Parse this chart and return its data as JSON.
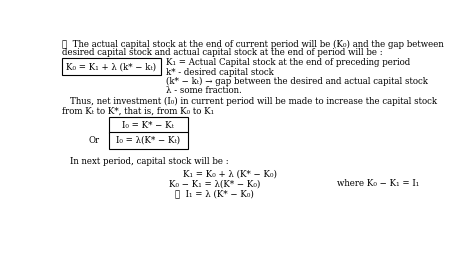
{
  "background_color": "#ffffff",
  "text_color": "#000000",
  "fig_width": 4.74,
  "fig_height": 2.69,
  "dpi": 100,
  "line1": "∴  The actual capital stock at the end of current period will be (K₀) and the gap between",
  "line2": "desired capital stock and actual capital stock at the end of period will be :",
  "box1_text": "K₀ = K₁ + λ (k* − kₜ)",
  "r1": "K₁ = Actual Capital stock at the end of preceding period",
  "r2": "k* - desired capital stock",
  "r3": "(k* − kₜ) → gap between the desired and actual capital stock",
  "r4": "λ - some fraction.",
  "thus_line1": "Thus, net investment (I₀) in current period will be made to increase the capital stock",
  "thus_line2": "from Kₜ to K*, that is, from K₀ to K₁",
  "box2_text": "I₀ = K* − Kₜ",
  "box3_text": "I₀ = λ(K* − Kₜ)",
  "or_text": "Or",
  "next_line": "In next period, capital stock will be :",
  "eq1": "K₁ = K₀ + λ (K* − K₀)",
  "eq2": "K₀ − K₁ = λ(K* − K₀)",
  "eq3": "∴  I₁ = λ (K* − K₀)",
  "where_text": "where K₀ − K₁ = I₁"
}
